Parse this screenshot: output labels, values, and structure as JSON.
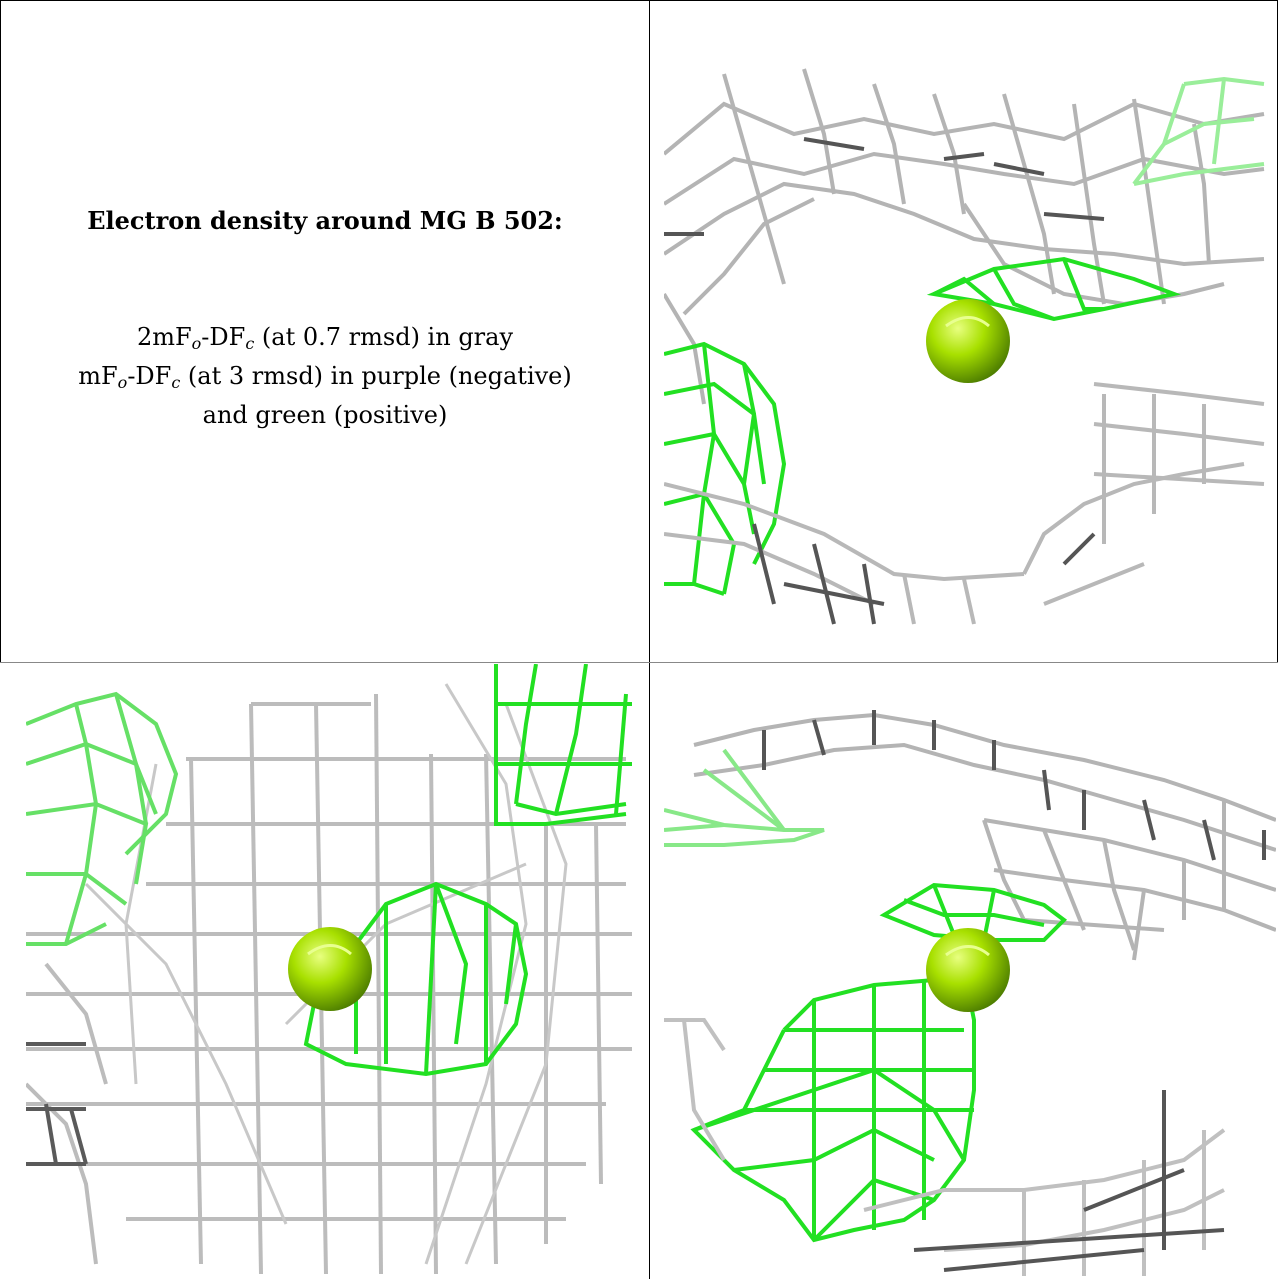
{
  "legend": {
    "title": "Electron density around MG B 502:",
    "line1": {
      "prefix": "2mF",
      "sub1": "o",
      "mid": "-DF",
      "sub2": "c",
      "suffix": " (at 0.7 rmsd) in gray"
    },
    "line2": {
      "prefix": "mF",
      "sub1": "o",
      "mid": "-DF",
      "sub2": "c",
      "suffix": " (at 3 rmsd) in purple (negative)"
    },
    "line3": "and green (positive)"
  },
  "colors": {
    "gray_mesh": "#b8b8b8",
    "dark_mesh": "#555555",
    "green_mesh": "#22e022",
    "light_green_mesh": "#88ee88",
    "magnesium_sphere": "#9ad400"
  },
  "panels": [
    {
      "name": "view-top-right"
    },
    {
      "name": "view-bottom-left"
    },
    {
      "name": "view-bottom-right"
    }
  ]
}
